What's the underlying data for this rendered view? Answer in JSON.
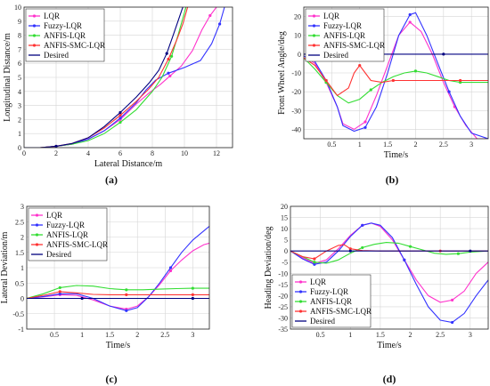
{
  "colors": {
    "LQR": "#ff33cc",
    "Fuzzy-LQR": "#3333ff",
    "ANFIS-LQR": "#33dd33",
    "ANFIS-SMC-LQR": "#ff3333",
    "Desired": "#000080"
  },
  "chart_data": [
    {
      "id": "a",
      "type": "line",
      "subtitle": "(a)",
      "xlabel": "Lateral Distance/m",
      "ylabel": "Longitudinal Distance/m",
      "xlim": [
        0,
        13
      ],
      "ylim": [
        0,
        10
      ],
      "xticks": [
        0,
        2,
        4,
        6,
        8,
        10,
        12
      ],
      "yticks": [
        0,
        1,
        2,
        3,
        4,
        5,
        6,
        7,
        8,
        9,
        10
      ],
      "grid": true,
      "legend_position": "top-left",
      "series": [
        {
          "name": "LQR",
          "x": [
            0,
            1,
            2,
            3,
            4,
            5,
            6,
            7,
            7.8,
            8.5,
            9.1,
            9.8,
            10.5,
            11.1,
            11.6,
            12.0
          ],
          "y": [
            0,
            0,
            0.1,
            0.25,
            0.6,
            1.2,
            2.0,
            3.1,
            3.9,
            4.5,
            5.1,
            5.8,
            6.9,
            8.4,
            9.4,
            10
          ]
        },
        {
          "name": "Fuzzy-LQR",
          "x": [
            0,
            1,
            2,
            3,
            4,
            5,
            6,
            7,
            7.6,
            8.2,
            9.0,
            10.0,
            11.0,
            11.7,
            12.2,
            12.5
          ],
          "y": [
            0,
            0,
            0.1,
            0.25,
            0.6,
            1.2,
            2.1,
            3.2,
            4.1,
            4.8,
            5.3,
            5.7,
            6.2,
            7.4,
            8.8,
            10
          ]
        },
        {
          "name": "ANFIS-LQR",
          "x": [
            0,
            1,
            2,
            3,
            4,
            5,
            6,
            7,
            8,
            8.6,
            9.2,
            9.6,
            9.9,
            10.1
          ],
          "y": [
            0,
            0,
            0.1,
            0.25,
            0.5,
            1.0,
            1.8,
            2.7,
            4.0,
            5.0,
            6.5,
            8.0,
            9.2,
            10
          ]
        },
        {
          "name": "ANFIS-SMC-LQR",
          "x": [
            0,
            1,
            2,
            3,
            4,
            5,
            6,
            7,
            7.8,
            8.4,
            9.0,
            9.5,
            9.9,
            10.2
          ],
          "y": [
            0,
            0,
            0.1,
            0.3,
            0.7,
            1.4,
            2.3,
            3.3,
            4.2,
            5.0,
            6.3,
            7.6,
            8.8,
            10
          ]
        },
        {
          "name": "Desired",
          "x": [
            0,
            1,
            2,
            3,
            4,
            5,
            6,
            7,
            7.8,
            8.4,
            8.9,
            9.3,
            9.6,
            9.9
          ],
          "y": [
            0,
            0,
            0.1,
            0.3,
            0.7,
            1.5,
            2.5,
            3.6,
            4.6,
            5.5,
            6.7,
            8.0,
            9.0,
            10
          ]
        }
      ]
    },
    {
      "id": "b",
      "type": "line",
      "subtitle": "(b)",
      "xlabel": "Time/s",
      "ylabel": "Front Wheel Angle/deg",
      "xlim": [
        0,
        3.3
      ],
      "ylim": [
        -45,
        25
      ],
      "xticks": [
        0.5,
        1,
        1.5,
        2,
        2.5,
        3
      ],
      "yticks": [
        -40,
        -30,
        -20,
        -10,
        0,
        10,
        20
      ],
      "grid": true,
      "legend_position": "top-left",
      "series": [
        {
          "name": "LQR",
          "x": [
            0,
            0.2,
            0.4,
            0.6,
            0.7,
            0.9,
            1.1,
            1.3,
            1.5,
            1.7,
            1.9,
            2.1,
            2.3,
            2.5,
            2.7,
            2.9,
            3.1,
            3.3
          ],
          "y": [
            -1,
            -5,
            -15,
            -28,
            -37,
            -40,
            -36,
            -22,
            -6,
            10,
            17,
            12,
            0,
            -15,
            -28,
            -38,
            -45,
            -45
          ]
        },
        {
          "name": "Fuzzy-LQR",
          "x": [
            0,
            0.2,
            0.4,
            0.6,
            0.7,
            0.9,
            1.1,
            1.3,
            1.5,
            1.7,
            1.9,
            2.0,
            2.2,
            2.4,
            2.6,
            2.8,
            3.0,
            3.3
          ],
          "y": [
            -1,
            -4,
            -14,
            -28,
            -38,
            -41,
            -39,
            -28,
            -10,
            10,
            21,
            22,
            10,
            -5,
            -20,
            -33,
            -42,
            -45
          ]
        },
        {
          "name": "ANFIS-LQR",
          "x": [
            0,
            0.2,
            0.4,
            0.6,
            0.8,
            1.0,
            1.2,
            1.4,
            1.6,
            1.8,
            2.0,
            2.2,
            2.4,
            2.6,
            2.8,
            3.0,
            3.2,
            3.3
          ],
          "y": [
            -2,
            -8,
            -15,
            -22,
            -26,
            -24,
            -19,
            -15,
            -12,
            -10,
            -9,
            -10,
            -12,
            -14,
            -15,
            -15,
            -15,
            -15
          ]
        },
        {
          "name": "ANFIS-SMC-LQR",
          "x": [
            0,
            0.2,
            0.4,
            0.6,
            0.8,
            0.9,
            1.0,
            1.1,
            1.2,
            1.4,
            1.6,
            1.8,
            2.0,
            2.4,
            2.8,
            3.3
          ],
          "y": [
            -2,
            -6,
            -14,
            -22,
            -18,
            -10,
            -6,
            -10,
            -14,
            -15,
            -14,
            -14,
            -14,
            -14,
            -14,
            -14
          ]
        },
        {
          "name": "Desired",
          "x": [
            0,
            0.3,
            0.6,
            1.0,
            1.5,
            2.0,
            2.5,
            3.0,
            3.3
          ],
          "y": [
            0,
            0,
            0,
            0,
            0,
            0,
            0,
            0,
            0
          ]
        }
      ]
    },
    {
      "id": "c",
      "type": "line",
      "subtitle": "(c)",
      "xlabel": "Time/s",
      "ylabel": "Lateral Deviation/m",
      "xlim": [
        0,
        3.3
      ],
      "ylim": [
        -1,
        3
      ],
      "xticks": [
        0.5,
        1,
        1.5,
        2,
        2.5,
        3
      ],
      "yticks": [
        -1,
        -0.5,
        0,
        0.5,
        1,
        1.5,
        2,
        2.5,
        3
      ],
      "grid": true,
      "legend_position": "top-left",
      "series": [
        {
          "name": "LQR",
          "x": [
            0,
            0.3,
            0.6,
            0.9,
            1.2,
            1.5,
            1.8,
            2.0,
            2.2,
            2.4,
            2.6,
            2.8,
            3.0,
            3.2,
            3.3
          ],
          "y": [
            0,
            0.05,
            0.12,
            0.1,
            -0.05,
            -0.25,
            -0.35,
            -0.25,
            0.05,
            0.45,
            0.9,
            1.25,
            1.55,
            1.75,
            1.8
          ]
        },
        {
          "name": "Fuzzy-LQR",
          "x": [
            0,
            0.3,
            0.6,
            0.9,
            1.2,
            1.5,
            1.8,
            2.0,
            2.2,
            2.4,
            2.6,
            2.8,
            3.0,
            3.2,
            3.3
          ],
          "y": [
            0,
            0.06,
            0.15,
            0.15,
            0.0,
            -0.25,
            -0.4,
            -0.3,
            0.05,
            0.5,
            1.0,
            1.5,
            1.9,
            2.2,
            2.35
          ]
        },
        {
          "name": "ANFIS-LQR",
          "x": [
            0,
            0.3,
            0.6,
            0.9,
            1.2,
            1.5,
            1.8,
            2.1,
            2.4,
            2.7,
            3.0,
            3.3
          ],
          "y": [
            0,
            0.15,
            0.35,
            0.42,
            0.4,
            0.32,
            0.28,
            0.28,
            0.3,
            0.32,
            0.33,
            0.33
          ]
        },
        {
          "name": "ANFIS-SMC-LQR",
          "x": [
            0,
            0.3,
            0.6,
            0.9,
            1.2,
            1.5,
            1.8,
            2.1,
            2.4,
            2.7,
            3.0,
            3.3
          ],
          "y": [
            0,
            0.1,
            0.22,
            0.18,
            0.13,
            0.12,
            0.12,
            0.12,
            0.12,
            0.12,
            0.12,
            0.12
          ]
        },
        {
          "name": "Desired",
          "x": [
            0,
            0.5,
            1.0,
            1.5,
            2.0,
            2.5,
            3.0,
            3.3
          ],
          "y": [
            0,
            0,
            0,
            0,
            0,
            0,
            0,
            0
          ]
        }
      ]
    },
    {
      "id": "d",
      "type": "line",
      "subtitle": "(d)",
      "xlabel": "Time/s",
      "ylabel": "Heading Deviation/deg",
      "xlim": [
        0,
        3.3
      ],
      "ylim": [
        -35,
        20
      ],
      "xticks": [
        0.5,
        1,
        1.5,
        2,
        2.5,
        3
      ],
      "yticks": [
        -35,
        -30,
        -25,
        -20,
        -15,
        -10,
        -5,
        0,
        5,
        10,
        15,
        20
      ],
      "grid": true,
      "legend_position": "bottom-left",
      "series": [
        {
          "name": "LQR",
          "x": [
            0,
            0.2,
            0.4,
            0.6,
            0.8,
            1.0,
            1.2,
            1.35,
            1.5,
            1.7,
            1.9,
            2.1,
            2.3,
            2.5,
            2.7,
            2.9,
            3.1,
            3.3
          ],
          "y": [
            0,
            -3,
            -5.5,
            -4,
            1,
            7,
            11.5,
            12.5,
            11,
            5,
            -4,
            -13,
            -20,
            -23,
            -22,
            -18,
            -10,
            -5
          ]
        },
        {
          "name": "Fuzzy-LQR",
          "x": [
            0,
            0.2,
            0.4,
            0.6,
            0.8,
            1.0,
            1.2,
            1.35,
            1.5,
            1.7,
            1.9,
            2.1,
            2.3,
            2.5,
            2.7,
            2.9,
            3.1,
            3.3
          ],
          "y": [
            0,
            -3.5,
            -6,
            -5,
            0,
            6.5,
            11.5,
            12.5,
            11.5,
            6,
            -4,
            -15,
            -25,
            -31,
            -32,
            -28,
            -20,
            -13
          ]
        },
        {
          "name": "ANFIS-LQR",
          "x": [
            0,
            0.2,
            0.4,
            0.6,
            0.8,
            1.0,
            1.2,
            1.4,
            1.6,
            1.8,
            2.0,
            2.2,
            2.4,
            2.6,
            2.8,
            3.0,
            3.3
          ],
          "y": [
            0,
            -2.5,
            -5,
            -5.5,
            -4,
            -1,
            1.5,
            3,
            3.8,
            3.5,
            2,
            0.5,
            -1,
            -1.5,
            -1.2,
            -0.5,
            0
          ]
        },
        {
          "name": "ANFIS-SMC-LQR",
          "x": [
            0,
            0.2,
            0.4,
            0.6,
            0.8,
            0.9,
            1.0,
            1.2,
            1.5,
            2.0,
            2.5,
            3.0,
            3.3
          ],
          "y": [
            0,
            -2.5,
            -3.5,
            0,
            2.5,
            2.8,
            1,
            0.2,
            0,
            0,
            0,
            0,
            0
          ]
        },
        {
          "name": "Desired",
          "x": [
            0,
            0.5,
            1.0,
            1.5,
            2.0,
            2.5,
            3.0,
            3.3
          ],
          "y": [
            0,
            0,
            0,
            0,
            0,
            0,
            0,
            0
          ]
        }
      ]
    }
  ]
}
